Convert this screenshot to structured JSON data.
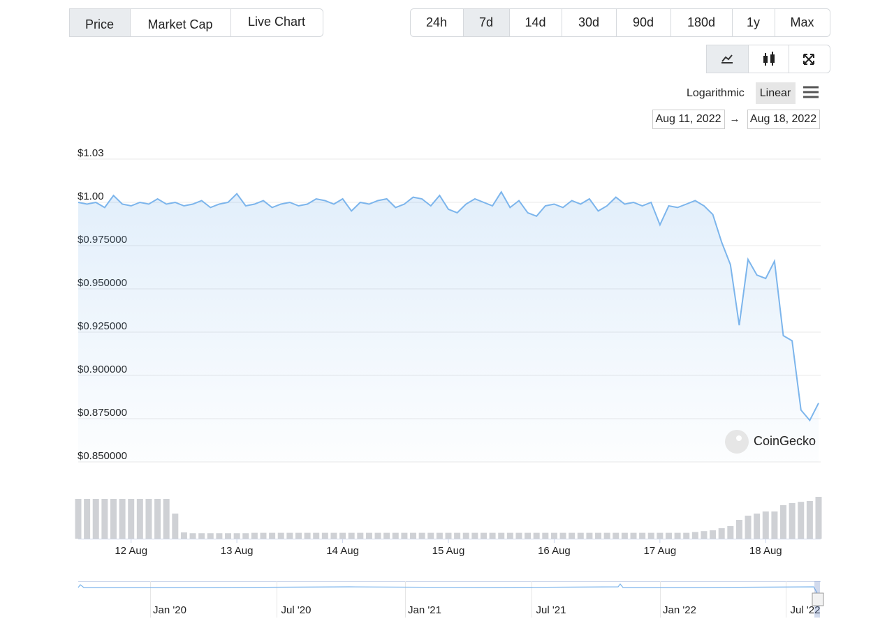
{
  "tabs": [
    "Price",
    "Market Cap",
    "Live Chart"
  ],
  "active_tab": 0,
  "ranges": [
    "24h",
    "7d",
    "14d",
    "30d",
    "90d",
    "180d",
    "1y",
    "Max"
  ],
  "active_range": 1,
  "scales": [
    "Logarithmic",
    "Linear"
  ],
  "active_scale": 1,
  "date_range": [
    "Aug 11, 2022",
    "Aug 18, 2022"
  ],
  "watermark": "CoinGecko",
  "navigator_labels": [
    "Jan '20",
    "Jul '20",
    "Jan '21",
    "Jul '21",
    "Jan '22",
    "Jul '22"
  ],
  "chart_data": {
    "type": "line",
    "categories": [
      null,
      null,
      null,
      null,
      null,
      null,
      "12 Aug",
      null,
      null,
      null,
      null,
      null,
      null,
      null,
      null,
      null,
      null,
      null,
      "13 Aug",
      null,
      null,
      null,
      null,
      null,
      null,
      null,
      null,
      null,
      null,
      null,
      "14 Aug",
      null,
      null,
      null,
      null,
      null,
      null,
      null,
      null,
      null,
      null,
      null,
      "15 Aug",
      null,
      null,
      null,
      null,
      null,
      null,
      null,
      null,
      null,
      null,
      null,
      "16 Aug",
      null,
      null,
      null,
      null,
      null,
      null,
      null,
      null,
      null,
      null,
      null,
      "17 Aug",
      null,
      null,
      null,
      null,
      null,
      null,
      null,
      null,
      null,
      null,
      null,
      "18 Aug",
      null,
      null,
      null,
      null,
      null,
      null
    ],
    "series": [
      {
        "color": "#7cb5ec",
        "values": [
          1.0,
          0.999,
          1.0,
          0.997,
          1.004,
          0.999,
          0.998,
          1.0,
          0.999,
          1.002,
          0.999,
          1.0,
          0.998,
          0.999,
          1.001,
          0.997,
          0.999,
          1.0,
          1.005,
          0.998,
          0.999,
          1.001,
          0.997,
          0.999,
          1.0,
          0.998,
          0.999,
          1.002,
          1.001,
          0.999,
          1.002,
          0.995,
          1.0,
          0.999,
          1.001,
          1.002,
          0.997,
          0.999,
          1.003,
          1.002,
          0.998,
          1.004,
          0.996,
          0.994,
          0.999,
          1.002,
          1.0,
          0.998,
          1.006,
          0.997,
          1.001,
          0.994,
          0.992,
          0.998,
          0.999,
          0.997,
          1.001,
          0.999,
          1.002,
          0.995,
          0.998,
          1.003,
          0.999,
          1.0,
          0.998,
          1.0,
          0.987,
          0.998,
          0.997,
          0.999,
          1.001,
          0.998,
          0.993,
          0.977,
          0.964,
          0.929,
          0.967,
          0.958,
          0.956,
          0.966,
          0.923,
          0.92,
          0.88,
          0.874,
          0.884
        ]
      },
      {
        "type": "bar",
        "axis": "y2",
        "color": "#cfd1d5",
        "values": [
          95,
          95,
          95,
          95,
          95,
          95,
          95,
          95,
          95,
          95,
          95,
          60,
          15,
          13,
          13,
          13,
          13,
          13,
          13,
          13,
          14,
          14,
          14,
          14,
          14,
          14,
          14,
          14,
          14,
          14,
          14,
          14,
          14,
          14,
          14,
          14,
          14,
          14,
          14,
          14,
          14,
          14,
          14,
          14,
          14,
          14,
          14,
          14,
          14,
          14,
          14,
          14,
          14,
          14,
          14,
          14,
          14,
          14,
          14,
          14,
          14,
          14,
          14,
          14,
          14,
          14,
          14,
          14,
          14,
          14,
          16,
          18,
          20,
          25,
          30,
          45,
          55,
          60,
          65,
          65,
          80,
          85,
          88,
          90,
          100
        ]
      }
    ],
    "ylim": [
      0.85,
      1.025
    ],
    "yticks": [
      {
        "value": 0.85,
        "label": "$0.850000"
      },
      {
        "value": 0.875,
        "label": "$0.875000"
      },
      {
        "value": 0.9,
        "label": "$0.900000"
      },
      {
        "value": 0.925,
        "label": "$0.925000"
      },
      {
        "value": 0.95,
        "label": "$0.950000"
      },
      {
        "value": 0.975,
        "label": "$0.975000"
      },
      {
        "value": 1,
        "label": "$1.00"
      },
      {
        "value": 1.025,
        "label": "$1.03"
      }
    ],
    "y2lim": [
      0,
      100
    ],
    "grid": true
  }
}
